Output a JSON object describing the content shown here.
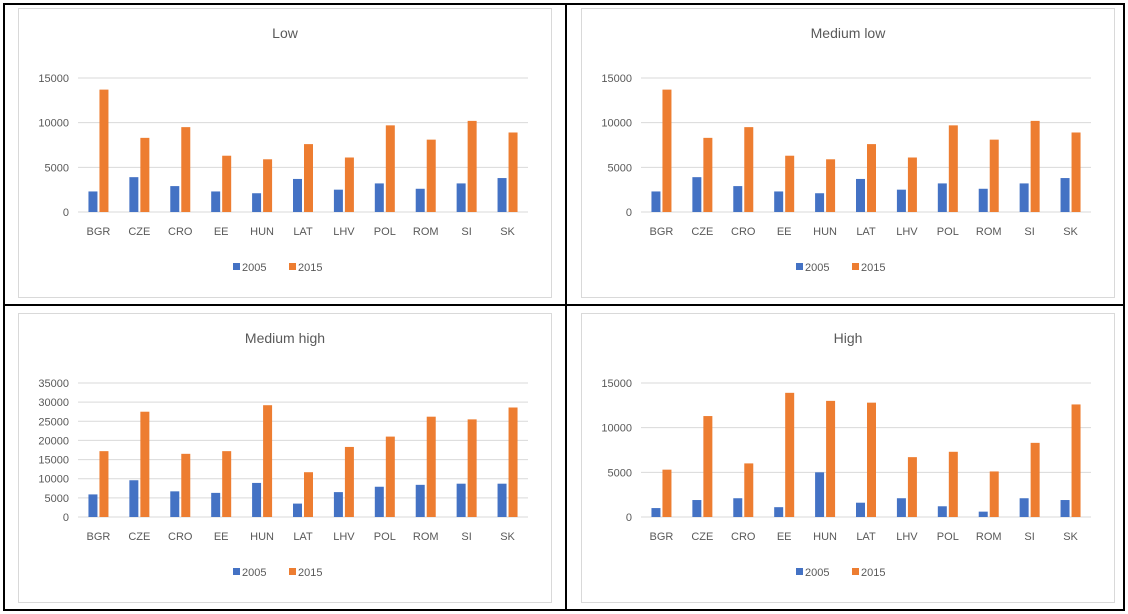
{
  "colors": {
    "series_2005": "#4472C4",
    "series_2015": "#ED7D31",
    "grid": "#D9D9D9",
    "chart_border": "#D9D9D9",
    "text": "#595959"
  },
  "chart_data": [
    {
      "type": "bar",
      "title": "Low",
      "categories": [
        "BGR",
        "CZE",
        "CRO",
        "EE",
        "HUN",
        "LAT",
        "LHV",
        "POL",
        "ROM",
        "SI",
        "SK"
      ],
      "ylim": [
        0,
        15000
      ],
      "yticks": [
        "0",
        "5000",
        "10000",
        "15000"
      ],
      "grid": true,
      "legend": "bottom",
      "series": [
        {
          "name": "2005",
          "values": [
            2300,
            3900,
            2900,
            2300,
            2100,
            3700,
            2500,
            3200,
            2600,
            3200,
            3800
          ]
        },
        {
          "name": "2015",
          "values": [
            13700,
            8300,
            9500,
            6300,
            5900,
            7600,
            6100,
            9700,
            8100,
            10200,
            8900
          ]
        }
      ]
    },
    {
      "type": "bar",
      "title": "Medium low",
      "categories": [
        "BGR",
        "CZE",
        "CRO",
        "EE",
        "HUN",
        "LAT",
        "LHV",
        "POL",
        "ROM",
        "SI",
        "SK"
      ],
      "ylim": [
        0,
        15000
      ],
      "yticks": [
        "0",
        "5000",
        "10000",
        "15000"
      ],
      "grid": true,
      "legend": "bottom",
      "series": [
        {
          "name": "2005",
          "values": [
            2300,
            3900,
            2900,
            2300,
            2100,
            3700,
            2500,
            3200,
            2600,
            3200,
            3800
          ]
        },
        {
          "name": "2015",
          "values": [
            13700,
            8300,
            9500,
            6300,
            5900,
            7600,
            6100,
            9700,
            8100,
            10200,
            8900
          ]
        }
      ]
    },
    {
      "type": "bar",
      "title": "Medium high",
      "categories": [
        "BGR",
        "CZE",
        "CRO",
        "EE",
        "HUN",
        "LAT",
        "LHV",
        "POL",
        "ROM",
        "SI",
        "SK"
      ],
      "ylim": [
        0,
        35000
      ],
      "yticks": [
        "0",
        "5000",
        "10000",
        "15000",
        "20000",
        "25000",
        "30000",
        "35000"
      ],
      "grid": true,
      "legend": "bottom",
      "series": [
        {
          "name": "2005",
          "values": [
            5900,
            9600,
            6700,
            6300,
            8900,
            3500,
            6500,
            7900,
            8400,
            8700,
            8700
          ]
        },
        {
          "name": "2015",
          "values": [
            17200,
            27500,
            16500,
            17200,
            29200,
            11700,
            18300,
            21000,
            26200,
            25500,
            28600
          ]
        }
      ]
    },
    {
      "type": "bar",
      "title": "High",
      "categories": [
        "BGR",
        "CZE",
        "CRO",
        "EE",
        "HUN",
        "LAT",
        "LHV",
        "POL",
        "ROM",
        "SI",
        "SK"
      ],
      "ylim": [
        0,
        15000
      ],
      "yticks": [
        "0",
        "5000",
        "10000",
        "15000"
      ],
      "grid": true,
      "legend": "bottom",
      "series": [
        {
          "name": "2005",
          "values": [
            1000,
            1900,
            2100,
            1100,
            5000,
            1600,
            2100,
            1200,
            600,
            2100,
            1900
          ]
        },
        {
          "name": "2015",
          "values": [
            5300,
            11300,
            6000,
            13900,
            13000,
            12800,
            6700,
            7300,
            5100,
            8300,
            12600
          ]
        }
      ]
    }
  ]
}
